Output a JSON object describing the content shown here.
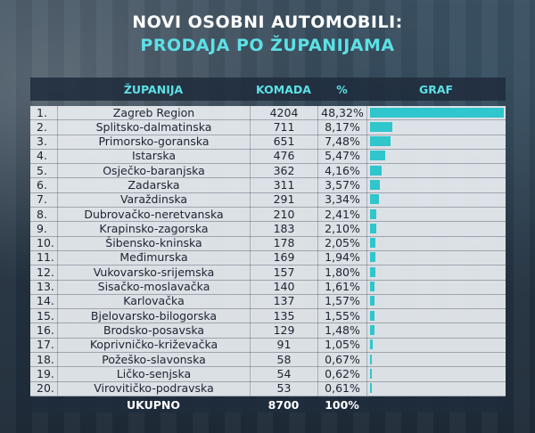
{
  "title_line1": "NOVI OSOBNI AUTOMOBILI:",
  "title_line2": "PRODAJA PO ŽUPANIJAMA",
  "headers": {
    "zupanija": "ŽUPANIJA",
    "komada": "KOMADA",
    "pct": "%",
    "graf": "GRAF"
  },
  "colors": {
    "accent": "#5ce1e6",
    "bar": "#2fc6cc"
  },
  "chart_data": {
    "type": "bar",
    "title": "NOVI OSOBNI AUTOMOBILI: PRODAJA PO ŽUPANIJAMA",
    "rows": [
      {
        "rank": "1.",
        "name": "Zagreb Region",
        "qty": "4204",
        "pct": "48,32%",
        "value": 48.32
      },
      {
        "rank": "2.",
        "name": "Splitsko-dalmatinska",
        "qty": "711",
        "pct": "8,17%",
        "value": 8.17
      },
      {
        "rank": "3.",
        "name": "Primorsko-goranska",
        "qty": "651",
        "pct": "7,48%",
        "value": 7.48
      },
      {
        "rank": "4.",
        "name": "Istarska",
        "qty": "476",
        "pct": "5,47%",
        "value": 5.47
      },
      {
        "rank": "5.",
        "name": "Osječko-baranjska",
        "qty": "362",
        "pct": "4,16%",
        "value": 4.16
      },
      {
        "rank": "6.",
        "name": "Zadarska",
        "qty": "311",
        "pct": "3,57%",
        "value": 3.57
      },
      {
        "rank": "7.",
        "name": "Varaždinska",
        "qty": "291",
        "pct": "3,34%",
        "value": 3.34
      },
      {
        "rank": "8.",
        "name": "Dubrovačko-neretvanska",
        "qty": "210",
        "pct": "2,41%",
        "value": 2.41
      },
      {
        "rank": "9.",
        "name": "Krapinsko-zagorska",
        "qty": "183",
        "pct": "2,10%",
        "value": 2.1
      },
      {
        "rank": "10.",
        "name": "Šibensko-kninska",
        "qty": "178",
        "pct": "2,05%",
        "value": 2.05
      },
      {
        "rank": "11.",
        "name": "Međimurska",
        "qty": "169",
        "pct": "1,94%",
        "value": 1.94
      },
      {
        "rank": "12.",
        "name": "Vukovarsko-srijemska",
        "qty": "157",
        "pct": "1,80%",
        "value": 1.8
      },
      {
        "rank": "13.",
        "name": "Sisačko-moslavačka",
        "qty": "140",
        "pct": "1,61%",
        "value": 1.61
      },
      {
        "rank": "14.",
        "name": "Karlovačka",
        "qty": "137",
        "pct": "1,57%",
        "value": 1.57
      },
      {
        "rank": "15.",
        "name": "Bjelovarsko-bilogorska",
        "qty": "135",
        "pct": "1,55%",
        "value": 1.55
      },
      {
        "rank": "16.",
        "name": "Brodsko-posavska",
        "qty": "129",
        "pct": "1,48%",
        "value": 1.48
      },
      {
        "rank": "17.",
        "name": "Koprivničko-križevačka",
        "qty": "91",
        "pct": "1,05%",
        "value": 1.05
      },
      {
        "rank": "18.",
        "name": "Požeško-slavonska",
        "qty": "58",
        "pct": "0,67%",
        "value": 0.67
      },
      {
        "rank": "19.",
        "name": "Ličko-senjska",
        "qty": "54",
        "pct": "0,62%",
        "value": 0.62
      },
      {
        "rank": "20.",
        "name": "Virovitičko-podravska",
        "qty": "53",
        "pct": "0,61%",
        "value": 0.61
      }
    ],
    "xlim": [
      0,
      48.32
    ],
    "total": {
      "label": "UKUPNO",
      "qty": "8700",
      "pct": "100%"
    }
  }
}
